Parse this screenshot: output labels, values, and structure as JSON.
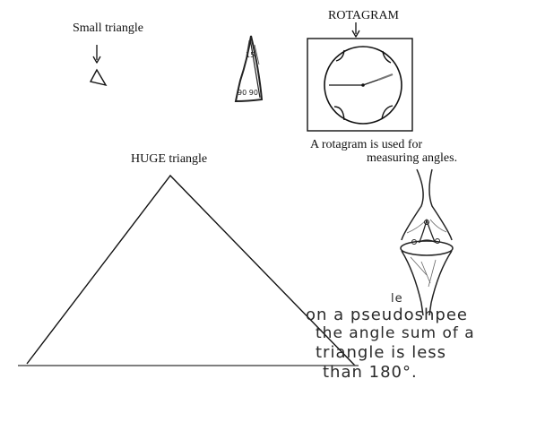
{
  "labels": {
    "small_triangle": "Small triangle",
    "rotagram_title": "ROTAGRAM",
    "rotagram_caption_line1": "A rotagram is used for",
    "rotagram_caption_line2": "measuring angles.",
    "huge_triangle": "HUGE triangle"
  },
  "sketch": {
    "angle_top": "15",
    "angle_bottom": "90 90"
  },
  "pseudosphere_note": {
    "line1_pre": "on a p",
    "line1_insert": "le",
    "line1_post": "seudoshpee",
    "line2": "the angle sum of a",
    "line3": "triangle is less",
    "line4": "than 180°."
  }
}
